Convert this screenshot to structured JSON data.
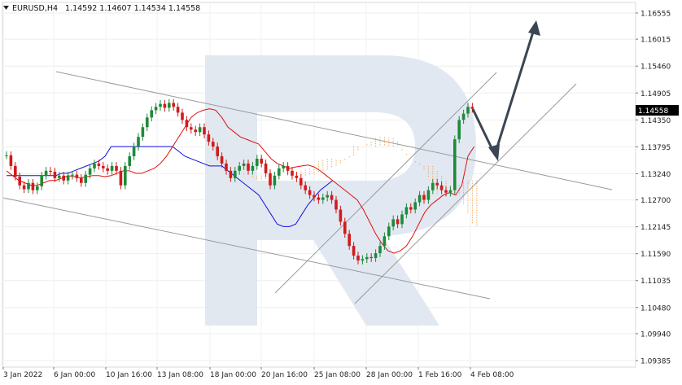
{
  "header": {
    "symbol_tf": "EURUSD,H4",
    "ohlc": "1.14592 1.14607 1.14534 1.14558"
  },
  "colors": {
    "up_candle": "#1e8a3a",
    "down_candle": "#d11b1b",
    "tenkan": "#e01010",
    "kijun": "#1010e0",
    "cloud": "#f0a050",
    "channel": "#9a9a9a",
    "arrow": "#3a4652",
    "price_label_bg": "#000000",
    "watermark": "#dfe6ef"
  },
  "chart_data": {
    "type": "candlestick",
    "title": "",
    "xlabel": "",
    "ylabel": "",
    "ylim": [
      1.0938,
      1.1683
    ],
    "y_ticks": [
      "1.16555",
      "1.16015",
      "1.15460",
      "1.14905",
      "1.14350",
      "1.13795",
      "1.13240",
      "1.12700",
      "1.12145",
      "1.11590",
      "1.11035",
      "1.10480",
      "1.09940",
      "1.09385"
    ],
    "x_ticks": [
      "3 Jan 2022",
      "6 Jan 00:00",
      "10 Jan 16:00",
      "13 Jan 08:00",
      "18 Jan 00:00",
      "20 Jan 16:00",
      "25 Jan 08:00",
      "28 Jan 00:00",
      "1 Feb 16:00",
      "4 Feb 08:00"
    ],
    "current_price": "1.14558",
    "close_series": [
      1.1362,
      1.134,
      1.1318,
      1.13,
      1.1292,
      1.1305,
      1.129,
      1.1298,
      1.132,
      1.133,
      1.1328,
      1.1315,
      1.132,
      1.131,
      1.132,
      1.1322,
      1.1315,
      1.1305,
      1.1322,
      1.1335,
      1.1345,
      1.134,
      1.1335,
      1.133,
      1.134,
      1.133,
      1.13,
      1.134,
      1.136,
      1.138,
      1.14,
      1.142,
      1.144,
      1.1455,
      1.1462,
      1.1468,
      1.146,
      1.147,
      1.1462,
      1.145,
      1.1435,
      1.142,
      1.1415,
      1.141,
      1.142,
      1.1405,
      1.139,
      1.138,
      1.136,
      1.1345,
      1.133,
      1.1315,
      1.133,
      1.134,
      1.1345,
      1.133,
      1.134,
      1.1355,
      1.1345,
      1.1325,
      1.13,
      1.132,
      1.1335,
      1.134,
      1.133,
      1.132,
      1.1315,
      1.13,
      1.129,
      1.128,
      1.1275,
      1.127,
      1.1275,
      1.128,
      1.127,
      1.125,
      1.1225,
      1.12,
      1.1175,
      1.1155,
      1.1145,
      1.1148,
      1.1152,
      1.115,
      1.116,
      1.1175,
      1.1195,
      1.1215,
      1.123,
      1.122,
      1.124,
      1.1255,
      1.125,
      1.1265,
      1.128,
      1.127,
      1.129,
      1.1305,
      1.13,
      1.129,
      1.1285,
      1.129,
      1.1395,
      1.1435,
      1.1448,
      1.1462,
      1.1458
    ],
    "tenkan_series": [
      1.133,
      1.132,
      1.131,
      1.1305,
      1.13,
      1.13,
      1.1305,
      1.131,
      1.131,
      1.1315,
      1.132,
      1.1318,
      1.1315,
      1.1318,
      1.132,
      1.132,
      1.1318,
      1.132,
      1.1325,
      1.133,
      1.133,
      1.1325,
      1.1325,
      1.133,
      1.1335,
      1.1345,
      1.136,
      1.138,
      1.14,
      1.142,
      1.144,
      1.145,
      1.1455,
      1.1458,
      1.1455,
      1.144,
      1.142,
      1.141,
      1.14,
      1.1395,
      1.139,
      1.1385,
      1.137,
      1.1355,
      1.1345,
      1.134,
      1.1335,
      1.1338,
      1.134,
      1.1342,
      1.1338,
      1.133,
      1.132,
      1.131,
      1.13,
      1.129,
      1.128,
      1.127,
      1.125,
      1.1225,
      1.12,
      1.118,
      1.1165,
      1.116,
      1.1165,
      1.1175,
      1.1195,
      1.122,
      1.1245,
      1.126,
      1.127,
      1.128,
      1.1285,
      1.128,
      1.13,
      1.136,
      1.138
    ],
    "kijun_series": [
      1.132,
      1.132,
      1.132,
      1.132,
      1.132,
      1.132,
      1.132,
      1.132,
      1.132,
      1.1325,
      1.1325,
      1.133,
      1.1335,
      1.134,
      1.1345,
      1.135,
      1.136,
      1.138,
      1.138,
      1.138,
      1.138,
      1.138,
      1.138,
      1.138,
      1.138,
      1.138,
      1.138,
      1.138,
      1.137,
      1.136,
      1.1355,
      1.135,
      1.1345,
      1.134,
      1.134,
      1.134,
      1.133,
      1.132,
      1.131,
      1.13,
      1.129,
      1.128,
      1.126,
      1.124,
      1.122,
      1.1215,
      1.1215,
      1.122,
      1.124,
      1.126,
      1.1275,
      1.129,
      1.13,
      1.131
    ]
  }
}
